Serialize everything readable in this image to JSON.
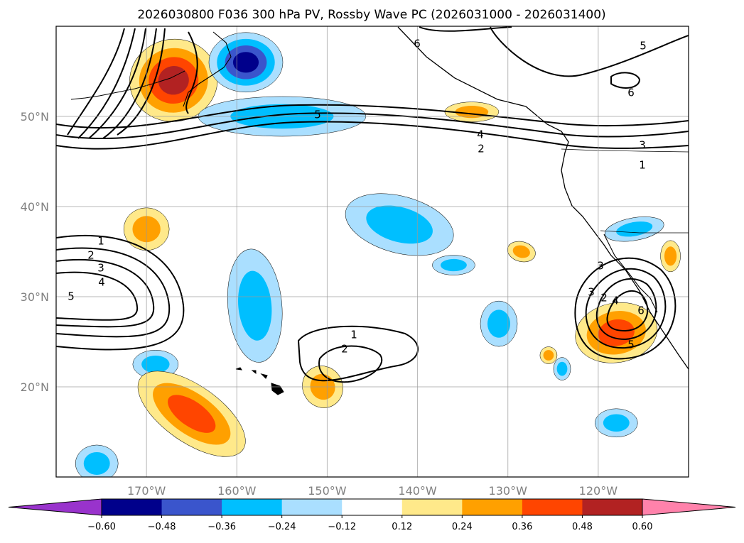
{
  "chart_data": {
    "type": "heatmap",
    "title": "2026030800 F036 300 hPa PV, Rossby Wave PC (2026031000 - 2026031400)",
    "map": {
      "lon_range": [
        -180,
        -110
      ],
      "lat_range": [
        10,
        60
      ],
      "grid": true,
      "lat_ticks": [
        20,
        30,
        40,
        50
      ],
      "lat_tick_labels": [
        "20°N",
        "30°N",
        "40°N",
        "50°N"
      ],
      "lon_ticks": [
        -170,
        -160,
        -150,
        -140,
        -130,
        -120
      ],
      "lon_tick_labels": [
        "170°W",
        "160°W",
        "150°W",
        "140°W",
        "130°W",
        "120°W"
      ]
    },
    "colorbar": {
      "orientation": "horizontal",
      "extend": "both",
      "levels": [
        -0.6,
        -0.48,
        -0.36,
        -0.24,
        -0.12,
        0.12,
        0.24,
        0.36,
        0.48,
        0.6
      ],
      "tick_labels": [
        "−0.60",
        "−0.48",
        "−0.36",
        "−0.24",
        "−0.12",
        "0.12",
        "0.24",
        "0.36",
        "0.48",
        "0.60"
      ],
      "colors": [
        "#9933cc",
        "#00008b",
        "#3a55cc",
        "#00bfff",
        "#aadfff",
        "#ffffff",
        "#ffe98a",
        "#ffa000",
        "#ff4500",
        "#b22222",
        "#ff82ab"
      ]
    },
    "shaded_anomalies": [
      {
        "lon": -167,
        "lat": 54,
        "value": 0.52
      },
      {
        "lon": -159,
        "lat": 56,
        "value": -0.5
      },
      {
        "lon": -155,
        "lat": 50,
        "value": -0.26
      },
      {
        "lon": -134,
        "lat": 50.5,
        "value": 0.26
      },
      {
        "lon": -170,
        "lat": 37.5,
        "value": 0.28
      },
      {
        "lon": -142,
        "lat": 38,
        "value": -0.3
      },
      {
        "lon": -136,
        "lat": 33.5,
        "value": -0.26
      },
      {
        "lon": -158,
        "lat": 29,
        "value": -0.34
      },
      {
        "lon": -169,
        "lat": 22.5,
        "value": -0.3
      },
      {
        "lon": -165,
        "lat": 17,
        "value": 0.4
      },
      {
        "lon": -175.5,
        "lat": 11.5,
        "value": -0.32
      },
      {
        "lon": -131,
        "lat": 27,
        "value": -0.32
      },
      {
        "lon": -128.5,
        "lat": 35,
        "value": 0.3
      },
      {
        "lon": -118,
        "lat": 26,
        "value": 0.38
      },
      {
        "lon": -116,
        "lat": 37.5,
        "value": -0.24
      },
      {
        "lon": -118,
        "lat": 16,
        "value": -0.26
      },
      {
        "lon": -112,
        "lat": 34.5,
        "value": 0.28
      },
      {
        "lon": -125.5,
        "lat": 23.5,
        "value": 0.26
      },
      {
        "lon": -150.5,
        "lat": 20,
        "value": 0.26
      },
      {
        "lon": -124,
        "lat": 22,
        "value": -0.24
      }
    ],
    "contour_labels": [
      "6",
      "5",
      "6",
      "5",
      "4",
      "3",
      "2",
      "1",
      "1",
      "2",
      "3",
      "4",
      "5",
      "1",
      "2",
      "3",
      "2",
      "4",
      "6",
      "5",
      "3"
    ]
  }
}
